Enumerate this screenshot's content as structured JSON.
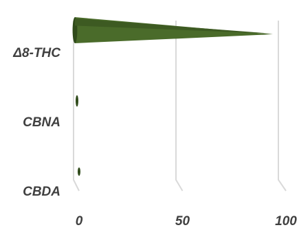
{
  "chart_data": {
    "type": "bar",
    "orientation": "horizontal",
    "style": "3d-cone",
    "categories": [
      "Δ8-THC",
      "CBNA",
      "CBDA"
    ],
    "values": [
      96,
      1,
      2
    ],
    "xlim": [
      0,
      100
    ],
    "xticks": [
      "0",
      "50",
      "100"
    ],
    "grid": true,
    "legend": "none",
    "bar_color": "#4a6b2a",
    "bar_color_dark": "#2f4a1a",
    "grid_color": "#d9d9d9"
  }
}
